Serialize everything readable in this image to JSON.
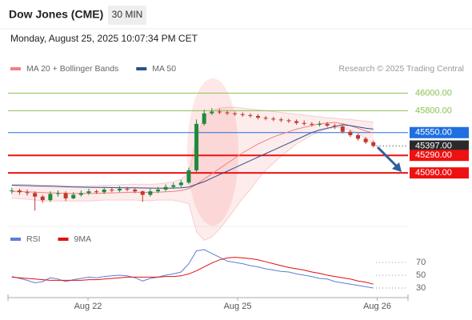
{
  "header": {
    "title": "Dow Jones (CME)",
    "timeframe": "30 MIN",
    "datetime": "Monday, August 25, 2025 10:07:34 PM CET",
    "credit": "Research © 2025 Trading Central"
  },
  "chart_data": [
    {
      "type": "candlestick",
      "xlim": [
        -0.5,
        51.5
      ],
      "ylim": [
        44480,
        46150
      ],
      "open": [
        44880,
        44890,
        44870,
        44860,
        44820,
        44780,
        44850,
        44860,
        44800,
        44840,
        44860,
        44880,
        44870,
        44900,
        44890,
        44910,
        44900,
        44880,
        44840,
        44880,
        44900,
        44930,
        44950,
        44980,
        45120,
        45650,
        45770,
        45790,
        45780,
        45770,
        45760,
        45750,
        45740,
        45720,
        45710,
        45700,
        45690,
        45680,
        45660,
        45650,
        45640,
        45650,
        45630,
        45620,
        45560,
        45520,
        45480,
        45440
      ],
      "close": [
        44890,
        44870,
        44860,
        44820,
        44780,
        44850,
        44860,
        44800,
        44840,
        44860,
        44880,
        44870,
        44900,
        44890,
        44910,
        44900,
        44880,
        44840,
        44880,
        44900,
        44930,
        44950,
        44980,
        45120,
        45650,
        45770,
        45790,
        45780,
        45770,
        45760,
        45750,
        45740,
        45720,
        45710,
        45700,
        45690,
        45680,
        45660,
        45650,
        45640,
        45650,
        45630,
        45620,
        45560,
        45520,
        45480,
        45440,
        45397
      ],
      "high": [
        44920,
        44910,
        44900,
        44880,
        44840,
        44880,
        44890,
        44880,
        44870,
        44890,
        44910,
        44900,
        44930,
        44920,
        44940,
        44930,
        44920,
        44890,
        44910,
        44930,
        44960,
        44980,
        45010,
        45150,
        45700,
        45810,
        45830,
        45820,
        45800,
        45790,
        45780,
        45770,
        45760,
        45740,
        45730,
        45720,
        45710,
        45700,
        45690,
        45670,
        45680,
        45670,
        45650,
        45640,
        45580,
        45540,
        45500,
        45460
      ],
      "low": [
        44850,
        44840,
        44830,
        44660,
        44750,
        44760,
        44820,
        44770,
        44790,
        44820,
        44840,
        44850,
        44850,
        44870,
        44870,
        44880,
        44860,
        44760,
        44820,
        44860,
        44880,
        44910,
        44930,
        44960,
        45100,
        45630,
        45750,
        45760,
        45750,
        45740,
        45730,
        45720,
        45700,
        45690,
        45680,
        45670,
        45660,
        45640,
        45630,
        45620,
        45620,
        45610,
        45590,
        45540,
        45500,
        45460,
        45420,
        45380
      ],
      "up_color": "#1e8a3c",
      "down_color": "#c0392b",
      "series": [
        {
          "name": "MA 20 + Bollinger Bands",
          "color": "#f08080",
          "values": [
            44880,
            44878,
            44875,
            44870,
            44865,
            44862,
            44860,
            44858,
            44855,
            44855,
            44856,
            44858,
            44860,
            44862,
            44865,
            44868,
            44870,
            44868,
            44868,
            44870,
            44875,
            44880,
            44890,
            44910,
            44960,
            45020,
            45080,
            45140,
            45200,
            45260,
            45320,
            45370,
            45420,
            45460,
            45500,
            45530,
            45560,
            45590,
            45610,
            45630,
            45650,
            45660,
            45665,
            45650,
            45630,
            45600,
            45570,
            45545
          ],
          "upper": [
            44960,
            44960,
            44960,
            44955,
            44950,
            44950,
            44950,
            44945,
            44940,
            44940,
            44940,
            44945,
            44950,
            44950,
            44955,
            44960,
            44960,
            44960,
            44960,
            44965,
            44975,
            44990,
            45020,
            45080,
            45500,
            45720,
            45800,
            45830,
            45840,
            45840,
            45830,
            45820,
            45810,
            45800,
            45790,
            45780,
            45770,
            45760,
            45750,
            45740,
            45730,
            45720,
            45715,
            45705,
            45700,
            45690,
            45680,
            45670
          ],
          "lower": [
            44800,
            44795,
            44790,
            44780,
            44770,
            44770,
            44770,
            44770,
            44770,
            44770,
            44770,
            44775,
            44780,
            44780,
            44780,
            44780,
            44780,
            44775,
            44775,
            44780,
            44780,
            44780,
            44760,
            44740,
            44420,
            44320,
            44360,
            44450,
            44560,
            44680,
            44800,
            44900,
            45020,
            45120,
            45200,
            45280,
            45350,
            45420,
            45470,
            45520,
            45560,
            45590,
            45610,
            45600,
            45580,
            45540,
            45480,
            45420
          ]
        },
        {
          "name": "MA 50",
          "color": "#2b4f8c",
          "values": [
            44950,
            44948,
            44945,
            44942,
            44940,
            44938,
            44935,
            44932,
            44930,
            44928,
            44926,
            44925,
            44924,
            44923,
            44922,
            44921,
            44920,
            44918,
            44917,
            44916,
            44916,
            44917,
            44920,
            44930,
            44960,
            44990,
            45030,
            45070,
            45110,
            45150,
            45190,
            45230,
            45270,
            45310,
            45350,
            45390,
            45430,
            45470,
            45510,
            45550,
            45580,
            45600,
            45620,
            45640,
            45630,
            45615,
            45600,
            45590
          ]
        }
      ],
      "levels": [
        {
          "value": 46000,
          "label": "46000.00",
          "color": "#8cc152",
          "style": "solid",
          "box": false
        },
        {
          "value": 45800,
          "label": "45800.00",
          "color": "#8cc152",
          "style": "solid",
          "box": false
        },
        {
          "value": 45550,
          "label": "45550.00",
          "color": "#1f6fe0",
          "style": "solid",
          "box": true
        },
        {
          "value": 45397,
          "label": "45397.00",
          "color": "#2a2a2a",
          "style": "dotted",
          "box": true
        },
        {
          "value": 45290,
          "label": "45290.00",
          "color": "#ee1111",
          "style": "solid",
          "box": true
        },
        {
          "value": 45090,
          "label": "45090.00",
          "color": "#ee1111",
          "style": "solid",
          "box": true
        }
      ]
    },
    {
      "type": "line",
      "xlim": [
        -0.5,
        51.5
      ],
      "ylim": [
        15,
        95
      ],
      "yticks": [
        70,
        50,
        30
      ],
      "xticks": [
        {
          "value": 9.9,
          "label": "Aug 22"
        },
        {
          "value": 29.35,
          "label": "Aug 25"
        },
        {
          "value": 47.5,
          "label": "Aug 26"
        }
      ],
      "series": [
        {
          "name": "RSI",
          "color": "#5b7fd6",
          "values": [
            48,
            45,
            42,
            38,
            40,
            46,
            44,
            40,
            43,
            45,
            47,
            46,
            48,
            49,
            50,
            49,
            46,
            41,
            45,
            47,
            50,
            52,
            55,
            68,
            88,
            90,
            84,
            78,
            72,
            70,
            68,
            65,
            63,
            60,
            58,
            56,
            55,
            52,
            50,
            48,
            45,
            44,
            40,
            38,
            36,
            34,
            32,
            30
          ]
        },
        {
          "name": "9MA",
          "color": "#e01010",
          "values": [
            47,
            46,
            45,
            44,
            43,
            42,
            42,
            42,
            42,
            42,
            43,
            43,
            44,
            45,
            46,
            47,
            47,
            47,
            47,
            47,
            48,
            48,
            49,
            52,
            57,
            63,
            69,
            74,
            77,
            78,
            77,
            76,
            74,
            71,
            68,
            65,
            62,
            60,
            58,
            55,
            53,
            50,
            48,
            46,
            44,
            41,
            39,
            36
          ]
        }
      ]
    }
  ]
}
